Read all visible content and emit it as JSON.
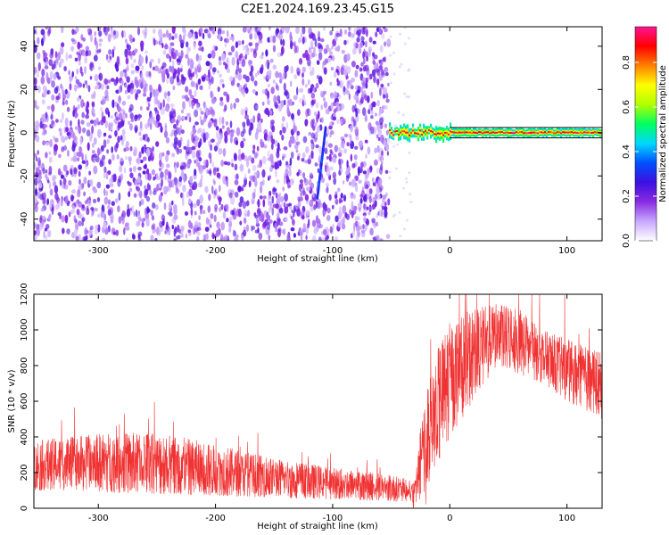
{
  "title": "C2E1.2024.169.23.45.G15",
  "chart_data": [
    {
      "type": "heatmap",
      "xlabel": "Height of straight line (km)",
      "ylabel": "Frequency (Hz)",
      "xlim": [
        -355,
        130
      ],
      "ylim": [
        -50,
        49
      ],
      "xticks": [
        -300,
        -200,
        -100,
        0,
        100
      ],
      "yticks": [
        -40,
        -20,
        0,
        20,
        40
      ],
      "colorbar": {
        "label": "Normalized spectral amplitude",
        "range": [
          0,
          0.96
        ],
        "ticks": [
          0.0,
          0.2,
          0.4,
          0.6,
          0.8
        ],
        "stops": [
          "#ffffff",
          "#c8a8ff",
          "#8a2be2",
          "#3c10e0",
          "#0050ff",
          "#00d8ff",
          "#00ff60",
          "#b0ff00",
          "#ffff00",
          "#ff8000",
          "#ff0000",
          "#ff1493"
        ]
      },
      "regions": [
        {
          "name": "noise",
          "x": [
            -355,
            -52
          ],
          "freq": [
            -50,
            49
          ],
          "amplitude": 0.15
        },
        {
          "name": "dispersion-streak",
          "x_top": -106,
          "x_bottom": -113,
          "freq": [
            -30,
            2
          ],
          "amplitude": 0.3
        },
        {
          "name": "signal-band",
          "x": [
            -52,
            130
          ],
          "freq_center": 0,
          "freq_halfwidth": 2,
          "amplitude": 0.9
        }
      ]
    },
    {
      "type": "line",
      "xlabel": "Height of straight line (km)",
      "ylabel": "SNR (10 * v/v)",
      "xlim": [
        -355,
        130
      ],
      "ylim": [
        0,
        1200
      ],
      "xticks": [
        -300,
        -200,
        -100,
        0,
        100
      ],
      "yticks": [
        0,
        200,
        400,
        600,
        800,
        1000,
        1200
      ],
      "color": "#f03232",
      "envelope": {
        "x": [
          -355,
          -300,
          -250,
          -200,
          -150,
          -100,
          -50,
          -30,
          -25,
          -20,
          -10,
          0,
          20,
          40,
          60,
          80,
          100,
          130
        ],
        "low": [
          100,
          90,
          80,
          70,
          60,
          50,
          40,
          30,
          50,
          100,
          250,
          400,
          600,
          800,
          750,
          700,
          600,
          500
        ],
        "high": [
          380,
          420,
          430,
          360,
          280,
          230,
          190,
          150,
          450,
          650,
          900,
          1050,
          1120,
          1150,
          1130,
          1000,
          950,
          870
        ]
      }
    }
  ]
}
